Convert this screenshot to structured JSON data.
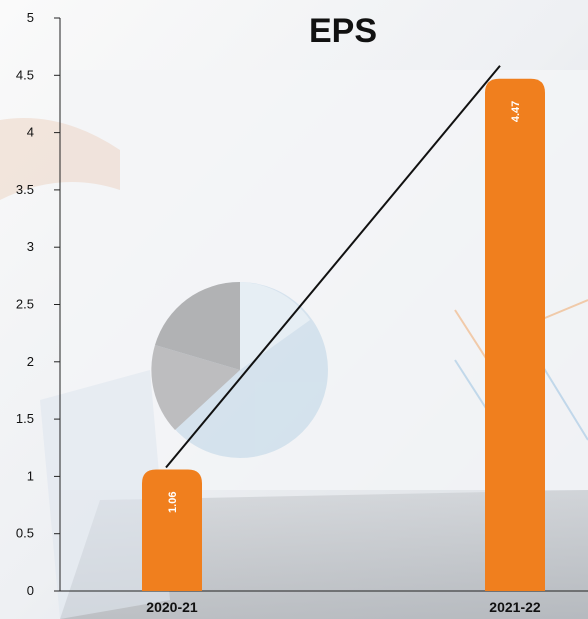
{
  "colors": {
    "bar": "#f07f1e",
    "axis": "#222222",
    "trend_line": "#111111",
    "background": "#f6f6f6"
  },
  "chart_data": {
    "type": "bar",
    "title": "EPS",
    "categories": [
      "2020-21",
      "2021-22"
    ],
    "values": [
      1.06,
      4.47
    ],
    "data_labels": [
      "1.06",
      "4.47"
    ],
    "xlabel": "",
    "ylabel": "",
    "ylim": [
      0,
      5
    ],
    "y_ticks": [
      "0",
      "0.5",
      "1",
      "1.5",
      "2",
      "2.5",
      "3",
      "3.5",
      "4",
      "4.5",
      "5"
    ],
    "grid": false,
    "legend": "none",
    "trend_line": true
  }
}
